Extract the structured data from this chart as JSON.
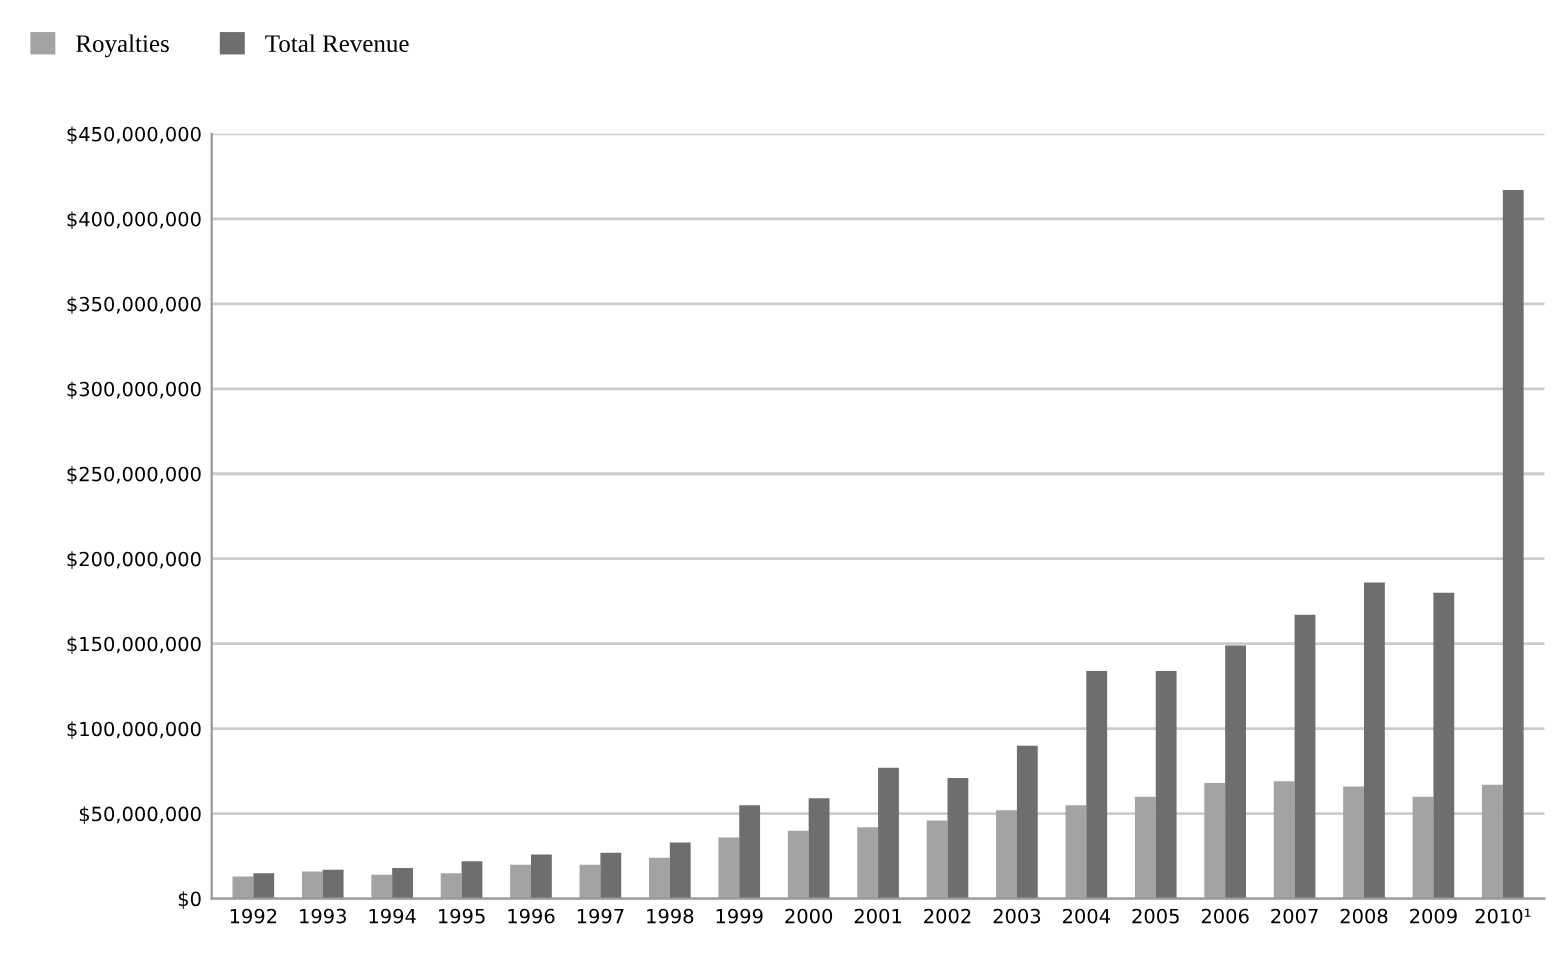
{
  "chart_data": {
    "type": "bar",
    "categories": [
      "1992",
      "1993",
      "1994",
      "1995",
      "1996",
      "1997",
      "1998",
      "1999",
      "2000",
      "2001",
      "2002",
      "2003",
      "2004",
      "2005",
      "2006",
      "2007",
      "2008",
      "2009",
      "2010¹"
    ],
    "series": [
      {
        "name": "Royalties",
        "color": "#a3a3a3",
        "values": [
          13000000,
          16000000,
          14000000,
          15000000,
          20000000,
          20000000,
          24000000,
          36000000,
          40000000,
          42000000,
          46000000,
          52000000,
          55000000,
          60000000,
          68000000,
          69000000,
          66000000,
          60000000,
          67000000
        ]
      },
      {
        "name": "Total Revenue",
        "color": "#6e6e6e",
        "values": [
          15000000,
          17000000,
          18000000,
          22000000,
          26000000,
          27000000,
          33000000,
          55000000,
          59000000,
          77000000,
          71000000,
          90000000,
          134000000,
          134000000,
          149000000,
          167000000,
          186000000,
          180000000,
          417000000
        ]
      }
    ],
    "ylim": [
      0,
      450000000
    ],
    "yticks": [
      {
        "value": 0,
        "label": "$0"
      },
      {
        "value": 50000000,
        "label": "$50,000,000"
      },
      {
        "value": 100000000,
        "label": "$100,000,000"
      },
      {
        "value": 150000000,
        "label": "$150,000,000"
      },
      {
        "value": 200000000,
        "label": "$200,000,000"
      },
      {
        "value": 250000000,
        "label": "$250,000,000"
      },
      {
        "value": 300000000,
        "label": "$300,000,000"
      },
      {
        "value": 350000000,
        "label": "$350,000,000"
      },
      {
        "value": 400000000,
        "label": "$400,000,000"
      },
      {
        "value": 450000000,
        "label": "$450,000,000"
      }
    ],
    "grid": "y",
    "legend": "top left"
  }
}
